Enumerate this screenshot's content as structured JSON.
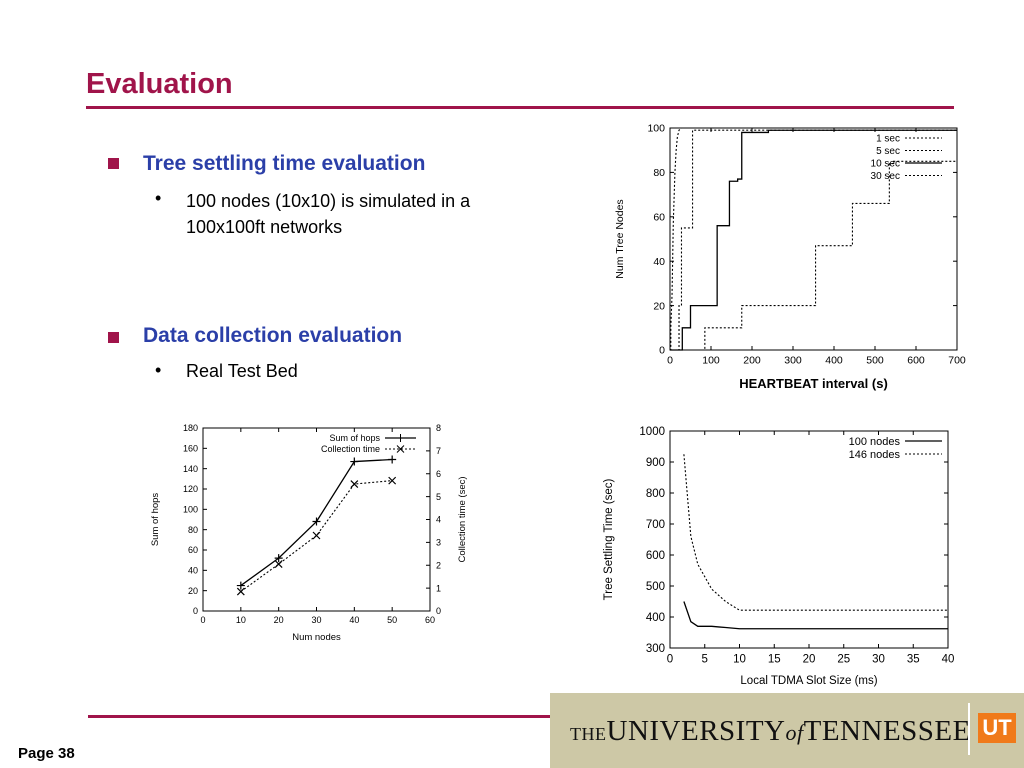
{
  "slide": {
    "title": "Evaluation",
    "page_label": "Page 38",
    "logo_text": "THE UNIVERSITY of TENNESSEE",
    "logo_mark": "UT"
  },
  "bullets": [
    {
      "text": "Tree settling time evaluation",
      "sub": [
        "100 nodes (10x10) is simulated in a",
        "100x100ft networks"
      ]
    },
    {
      "text": "Data collection evaluation",
      "sub": [
        "Real Test Bed"
      ]
    }
  ],
  "chart_data": [
    {
      "type": "line",
      "id": "heartbeat",
      "xlabel": "HEARTBEAT interval (s)",
      "ylabel": "Num Tree Nodes",
      "xlim": [
        0,
        700
      ],
      "ylim": [
        0,
        100
      ],
      "xticks": [
        0,
        100,
        200,
        300,
        400,
        500,
        600,
        700
      ],
      "yticks": [
        0,
        20,
        40,
        60,
        80,
        100
      ],
      "legend": "top-right",
      "series": [
        {
          "name": "1 sec",
          "style": "dotted",
          "points": [
            [
              0,
              0
            ],
            [
              2,
              0
            ],
            [
              2,
              10
            ],
            [
              5,
              25
            ],
            [
              8,
              57
            ],
            [
              12,
              80
            ],
            [
              15,
              90
            ],
            [
              18,
              96
            ],
            [
              22,
              99
            ],
            [
              28,
              100
            ],
            [
              700,
              100
            ]
          ]
        },
        {
          "name": "5 sec",
          "style": "dotted",
          "points": [
            [
              0,
              0
            ],
            [
              22,
              0
            ],
            [
              22,
              20
            ],
            [
              28,
              20
            ],
            [
              28,
              55
            ],
            [
              55,
              55
            ],
            [
              55,
              99
            ],
            [
              700,
              99
            ]
          ]
        },
        {
          "name": "10 sec",
          "style": "solid",
          "points": [
            [
              0,
              0
            ],
            [
              30,
              0
            ],
            [
              30,
              10
            ],
            [
              50,
              10
            ],
            [
              50,
              20
            ],
            [
              115,
              20
            ],
            [
              115,
              56
            ],
            [
              145,
              56
            ],
            [
              145,
              76
            ],
            [
              165,
              76
            ],
            [
              165,
              77
            ],
            [
              175,
              77
            ],
            [
              175,
              98
            ],
            [
              240,
              98
            ],
            [
              240,
              99
            ],
            [
              700,
              99
            ]
          ]
        },
        {
          "name": "30 sec",
          "style": "dotted",
          "points": [
            [
              0,
              0
            ],
            [
              85,
              0
            ],
            [
              85,
              10
            ],
            [
              175,
              10
            ],
            [
              175,
              20
            ],
            [
              355,
              20
            ],
            [
              355,
              47
            ],
            [
              445,
              47
            ],
            [
              445,
              66
            ],
            [
              535,
              66
            ],
            [
              535,
              84
            ],
            [
              545,
              84
            ],
            [
              545,
              85
            ],
            [
              700,
              85
            ]
          ]
        }
      ]
    },
    {
      "type": "line",
      "id": "collection",
      "xlabel": "Num nodes",
      "ylabel": "Sum of hops",
      "y2label": "Collection time (sec)",
      "xlim": [
        0,
        60
      ],
      "ylim": [
        0,
        180
      ],
      "y2lim": [
        0,
        8
      ],
      "xticks": [
        0,
        10,
        20,
        30,
        40,
        50,
        60
      ],
      "yticks": [
        0,
        20,
        40,
        60,
        80,
        100,
        120,
        140,
        160,
        180
      ],
      "y2ticks": [
        0,
        1,
        2,
        3,
        4,
        5,
        6,
        7,
        8
      ],
      "legend": "top-right",
      "series": [
        {
          "name": "Sum of hops",
          "axis": "left",
          "style": "solid",
          "marker": "+",
          "x": [
            10,
            20,
            30,
            40,
            50
          ],
          "values": [
            25,
            52,
            88,
            147,
            149
          ]
        },
        {
          "name": "Collection time",
          "axis": "right",
          "style": "dotted",
          "marker": "x",
          "x": [
            10,
            20,
            30,
            40,
            50
          ],
          "values": [
            0.85,
            2.05,
            3.3,
            5.55,
            5.7
          ]
        }
      ]
    },
    {
      "type": "line",
      "id": "tdma",
      "xlabel": "Local TDMA Slot Size (ms)",
      "ylabel": "Tree Settling Time (sec)",
      "xlim": [
        0,
        40
      ],
      "ylim": [
        300,
        1000
      ],
      "xticks": [
        0,
        5,
        10,
        15,
        20,
        25,
        30,
        35,
        40
      ],
      "yticks": [
        300,
        400,
        500,
        600,
        700,
        800,
        900,
        1000
      ],
      "legend": "top-right",
      "series": [
        {
          "name": "100 nodes",
          "style": "solid",
          "x": [
            2,
            3,
            4,
            5,
            6,
            7,
            8,
            10,
            15,
            20,
            25,
            30,
            35,
            40
          ],
          "values": [
            450,
            385,
            370,
            370,
            370,
            368,
            366,
            362,
            362,
            362,
            362,
            362,
            362,
            362
          ]
        },
        {
          "name": "146 nodes",
          "style": "dotted",
          "x": [
            2,
            3,
            4,
            5,
            6,
            7,
            8,
            10,
            15,
            20,
            25,
            30,
            35,
            40
          ],
          "values": [
            925,
            660,
            570,
            530,
            490,
            470,
            450,
            422,
            422,
            422,
            422,
            422,
            422,
            422
          ]
        }
      ]
    }
  ]
}
